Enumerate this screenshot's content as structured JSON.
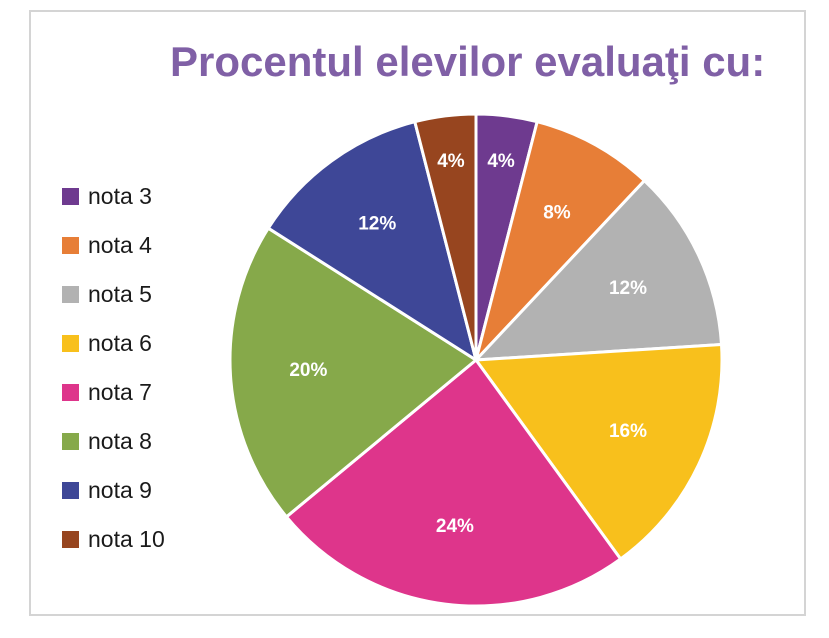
{
  "chart_data": {
    "type": "pie",
    "title": "Procentul elevilor evaluaţi cu:",
    "categories": [
      "nota 3",
      "nota 4",
      "nota 5",
      "nota 6",
      "nota 7",
      "nota 8",
      "nota 9",
      "nota 10"
    ],
    "values": [
      4,
      8,
      12,
      16,
      24,
      20,
      12,
      4
    ],
    "labels": [
      "4%",
      "8%",
      "12%",
      "16%",
      "24%",
      "20%",
      "12%",
      "4%"
    ],
    "colors": [
      "#6e3a8f",
      "#e77e37",
      "#b2b2b2",
      "#f8c01c",
      "#de358b",
      "#86a94a",
      "#3e4797",
      "#97451f"
    ],
    "legend_position": "left"
  }
}
